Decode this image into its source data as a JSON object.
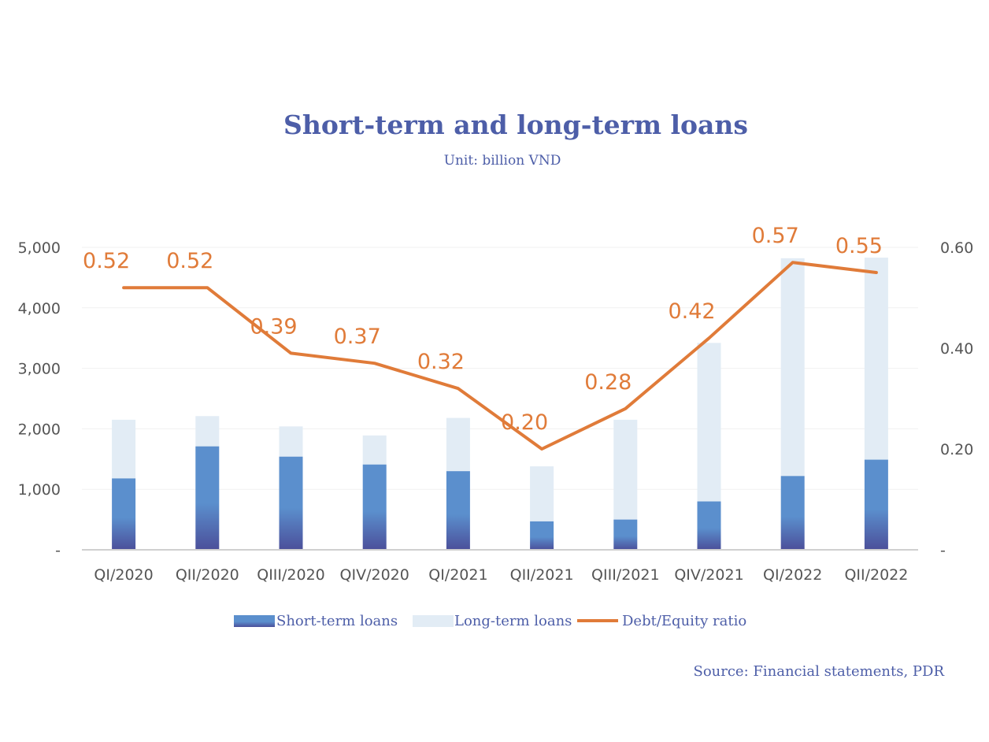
{
  "title": "Short-term and long-term loans",
  "subtitle": "Unit: billion VND",
  "source": "Source: Financial statements, PDR",
  "colors": {
    "short": "#5b8fcd",
    "short_bottom": "#4b4f9a",
    "long": "#e2ecf5",
    "line": "#e07b39",
    "text": "#4d5ea8"
  },
  "legend": [
    {
      "name": "Short-term loans",
      "kind": "bar-short"
    },
    {
      "name": "Long-term loans",
      "kind": "bar-long"
    },
    {
      "name": "Debt/Equity ratio",
      "kind": "line"
    }
  ],
  "chart_data": {
    "type": "bar",
    "stacked": true,
    "categories": [
      "QI/2020",
      "QII/2020",
      "QIII/2020",
      "QIV/2020",
      "QI/2021",
      "QII/2021",
      "QIII/2021",
      "QIV/2021",
      "QI/2022",
      "QII/2022"
    ],
    "series": [
      {
        "name": "Short-term loans",
        "axis": "left",
        "values": [
          1180,
          1710,
          1540,
          1410,
          1300,
          470,
          500,
          800,
          1220,
          1490
        ]
      },
      {
        "name": "Long-term loans",
        "axis": "left",
        "values": [
          970,
          500,
          500,
          480,
          880,
          910,
          1650,
          2620,
          3600,
          3340
        ]
      },
      {
        "name": "Debt/Equity ratio",
        "type": "line",
        "axis": "right",
        "values": [
          0.52,
          0.52,
          0.39,
          0.37,
          0.32,
          0.2,
          0.28,
          0.42,
          0.57,
          0.55
        ],
        "labels": [
          "0.52",
          "0.52",
          "0.39",
          "0.37",
          "0.32",
          "0.20",
          "0.28",
          "0.42",
          "0.57",
          "0.55"
        ]
      }
    ],
    "left_axis": {
      "ylim": [
        0,
        5000
      ],
      "ticks": [
        0,
        1000,
        2000,
        3000,
        4000,
        5000
      ],
      "tick_labels": [
        "-",
        "1,000",
        "2,000",
        "3,000",
        "4,000",
        "5,000"
      ]
    },
    "right_axis": {
      "ylim": [
        0,
        0.6
      ],
      "ticks": [
        0,
        0.2,
        0.4,
        0.6
      ],
      "tick_labels": [
        "-",
        "0.20",
        "0.40",
        "0.60"
      ]
    },
    "grid": true,
    "legend_position": "bottom"
  }
}
